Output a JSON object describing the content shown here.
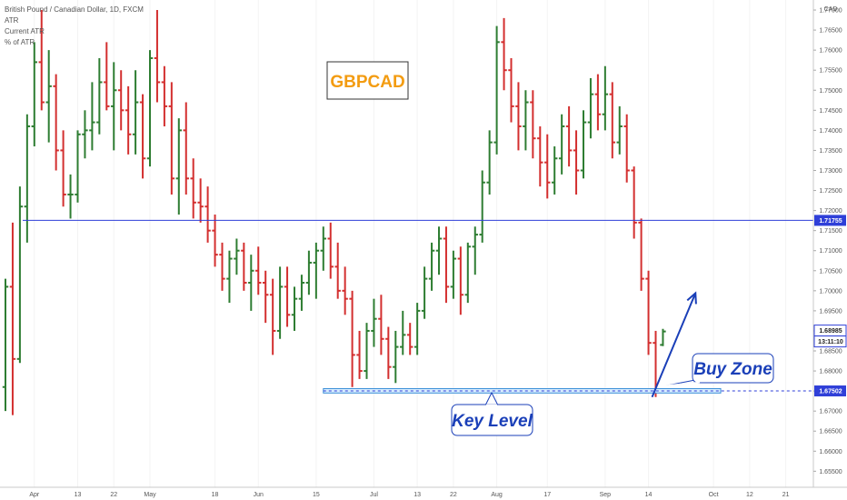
{
  "legend": {
    "symbol": "British Pound / Canadian Dollar, 1D, FXCM",
    "indicators": [
      "ATR",
      "Current ATR",
      "% of ATR"
    ]
  },
  "currency": "CAD",
  "colors": {
    "up": "#2e7d32",
    "down": "#d32f2f",
    "resistance": "#2f3fd8",
    "annotation": "#1a3fb8",
    "title": "#f39c12"
  },
  "chart_data": {
    "type": "ohlc-bar",
    "title": "GBPCAD",
    "ylim": [
      1.651,
      1.7725
    ],
    "y_ticks": [
      "1.77000",
      "1.76500",
      "1.76000",
      "1.75500",
      "1.75000",
      "1.74500",
      "1.74000",
      "1.73500",
      "1.73000",
      "1.72500",
      "1.72000",
      "1.71500",
      "1.71000",
      "1.70500",
      "1.70000",
      "1.69500",
      "1.69000",
      "1.68500",
      "1.68000",
      "1.67500",
      "1.67000",
      "1.66500",
      "1.66000",
      "1.65500"
    ],
    "x_labels": [
      {
        "label": "Apr",
        "bar": 4
      },
      {
        "label": "13",
        "bar": 10
      },
      {
        "label": "22",
        "bar": 15
      },
      {
        "label": "May",
        "bar": 20
      },
      {
        "label": "18",
        "bar": 29
      },
      {
        "label": "Jun",
        "bar": 35
      },
      {
        "label": "15",
        "bar": 43
      },
      {
        "label": "Jul",
        "bar": 51
      },
      {
        "label": "13",
        "bar": 57
      },
      {
        "label": "22",
        "bar": 62
      },
      {
        "label": "Aug",
        "bar": 68
      },
      {
        "label": "17",
        "bar": 75
      },
      {
        "label": "Sep",
        "bar": 83
      },
      {
        "label": "14",
        "bar": 89
      },
      {
        "label": "Oct",
        "bar": 98
      },
      {
        "label": "12",
        "bar": 103
      },
      {
        "label": "21",
        "bar": 108
      }
    ],
    "resistance_level": 1.71755,
    "resistance_label": "1.71755",
    "key_level": 1.67502,
    "key_level_label": "1.67502",
    "last_price_label": "1.68985",
    "countdown_label": "13:11:10",
    "last_price": 1.68985,
    "key_zone": {
      "from_bar": 44,
      "to_bar": 99,
      "low": 1.6745,
      "high": 1.6756
    },
    "arrow": {
      "from_bar": 89.5,
      "from_price": 1.6735,
      "to_bar": 95,
      "to_price": 1.6985
    },
    "ohlc": [
      [
        1.676,
        1.703,
        1.67,
        1.701
      ],
      [
        1.701,
        1.717,
        1.669,
        1.683
      ],
      [
        1.683,
        1.726,
        1.682,
        1.721
      ],
      [
        1.721,
        1.744,
        1.712,
        1.741
      ],
      [
        1.741,
        1.762,
        1.736,
        1.757
      ],
      [
        1.757,
        1.77,
        1.745,
        1.747
      ],
      [
        1.747,
        1.76,
        1.737,
        1.751
      ],
      [
        1.751,
        1.754,
        1.73,
        1.735
      ],
      [
        1.735,
        1.74,
        1.721,
        1.724
      ],
      [
        1.724,
        1.729,
        1.718,
        1.724
      ],
      [
        1.724,
        1.74,
        1.722,
        1.739
      ],
      [
        1.739,
        1.745,
        1.733,
        1.74
      ],
      [
        1.74,
        1.752,
        1.735,
        1.742
      ],
      [
        1.742,
        1.758,
        1.739,
        1.752
      ],
      [
        1.752,
        1.762,
        1.745,
        1.746
      ],
      [
        1.746,
        1.757,
        1.735,
        1.75
      ],
      [
        1.75,
        1.755,
        1.74,
        1.745
      ],
      [
        1.745,
        1.751,
        1.734,
        1.739
      ],
      [
        1.739,
        1.755,
        1.734,
        1.747
      ],
      [
        1.747,
        1.749,
        1.728,
        1.733
      ],
      [
        1.733,
        1.76,
        1.731,
        1.758
      ],
      [
        1.758,
        1.77,
        1.747,
        1.752
      ],
      [
        1.752,
        1.756,
        1.741,
        1.746
      ],
      [
        1.746,
        1.752,
        1.724,
        1.728
      ],
      [
        1.728,
        1.743,
        1.719,
        1.74
      ],
      [
        1.74,
        1.747,
        1.724,
        1.728
      ],
      [
        1.728,
        1.733,
        1.718,
        1.722
      ],
      [
        1.722,
        1.728,
        1.717,
        1.721
      ],
      [
        1.721,
        1.726,
        1.712,
        1.715
      ],
      [
        1.715,
        1.719,
        1.706,
        1.709
      ],
      [
        1.709,
        1.712,
        1.7,
        1.703
      ],
      [
        1.703,
        1.71,
        1.697,
        1.708
      ],
      [
        1.708,
        1.713,
        1.704,
        1.71
      ],
      [
        1.71,
        1.712,
        1.7,
        1.702
      ],
      [
        1.702,
        1.709,
        1.695,
        1.705
      ],
      [
        1.705,
        1.711,
        1.699,
        1.702
      ],
      [
        1.702,
        1.705,
        1.692,
        1.699
      ],
      [
        1.699,
        1.703,
        1.684,
        1.69
      ],
      [
        1.69,
        1.706,
        1.688,
        1.701
      ],
      [
        1.701,
        1.706,
        1.691,
        1.694
      ],
      [
        1.694,
        1.701,
        1.69,
        1.698
      ],
      [
        1.698,
        1.704,
        1.695,
        1.702
      ],
      [
        1.702,
        1.71,
        1.699,
        1.707
      ],
      [
        1.707,
        1.712,
        1.698,
        1.71
      ],
      [
        1.71,
        1.716,
        1.705,
        1.713
      ],
      [
        1.713,
        1.717,
        1.703,
        1.706
      ],
      [
        1.706,
        1.712,
        1.698,
        1.7
      ],
      [
        1.7,
        1.706,
        1.694,
        1.698
      ],
      [
        1.698,
        1.7,
        1.676,
        1.684
      ],
      [
        1.684,
        1.69,
        1.678,
        1.68
      ],
      [
        1.68,
        1.692,
        1.678,
        1.69
      ],
      [
        1.69,
        1.698,
        1.686,
        1.693
      ],
      [
        1.693,
        1.699,
        1.684,
        1.688
      ],
      [
        1.688,
        1.691,
        1.678,
        1.681
      ],
      [
        1.681,
        1.69,
        1.677,
        1.686
      ],
      [
        1.686,
        1.695,
        1.684,
        1.689
      ],
      [
        1.689,
        1.692,
        1.684,
        1.686
      ],
      [
        1.686,
        1.697,
        1.684,
        1.695
      ],
      [
        1.695,
        1.706,
        1.693,
        1.703
      ],
      [
        1.703,
        1.712,
        1.7,
        1.71
      ],
      [
        1.71,
        1.716,
        1.704,
        1.713
      ],
      [
        1.713,
        1.716,
        1.697,
        1.701
      ],
      [
        1.701,
        1.71,
        1.698,
        1.708
      ],
      [
        1.708,
        1.711,
        1.694,
        1.699
      ],
      [
        1.699,
        1.712,
        1.697,
        1.711
      ],
      [
        1.711,
        1.716,
        1.704,
        1.714
      ],
      [
        1.714,
        1.73,
        1.712,
        1.727
      ],
      [
        1.727,
        1.74,
        1.724,
        1.737
      ],
      [
        1.737,
        1.766,
        1.734,
        1.762
      ],
      [
        1.762,
        1.768,
        1.75,
        1.755
      ],
      [
        1.755,
        1.758,
        1.742,
        1.746
      ],
      [
        1.746,
        1.752,
        1.735,
        1.741
      ],
      [
        1.741,
        1.75,
        1.735,
        1.747
      ],
      [
        1.747,
        1.75,
        1.733,
        1.738
      ],
      [
        1.738,
        1.741,
        1.726,
        1.732
      ],
      [
        1.732,
        1.739,
        1.723,
        1.727
      ],
      [
        1.727,
        1.736,
        1.724,
        1.733
      ],
      [
        1.733,
        1.744,
        1.729,
        1.741
      ],
      [
        1.741,
        1.746,
        1.731,
        1.735
      ],
      [
        1.735,
        1.74,
        1.724,
        1.73
      ],
      [
        1.73,
        1.745,
        1.728,
        1.742
      ],
      [
        1.742,
        1.753,
        1.738,
        1.749
      ],
      [
        1.749,
        1.754,
        1.74,
        1.744
      ],
      [
        1.744,
        1.756,
        1.74,
        1.749
      ],
      [
        1.749,
        1.752,
        1.733,
        1.737
      ],
      [
        1.737,
        1.746,
        1.734,
        1.741
      ],
      [
        1.741,
        1.744,
        1.727,
        1.73
      ],
      [
        1.73,
        1.731,
        1.713,
        1.717
      ],
      [
        1.717,
        1.718,
        1.7,
        1.703
      ],
      [
        1.703,
        1.705,
        1.684,
        1.687
      ],
      [
        1.687,
        1.69,
        1.6735,
        1.6755
      ],
      [
        1.6865,
        1.6905,
        1.6862,
        1.68985
      ]
    ]
  },
  "annotations": {
    "buy_zone": "Buy Zone",
    "key_level": "Key Level"
  }
}
